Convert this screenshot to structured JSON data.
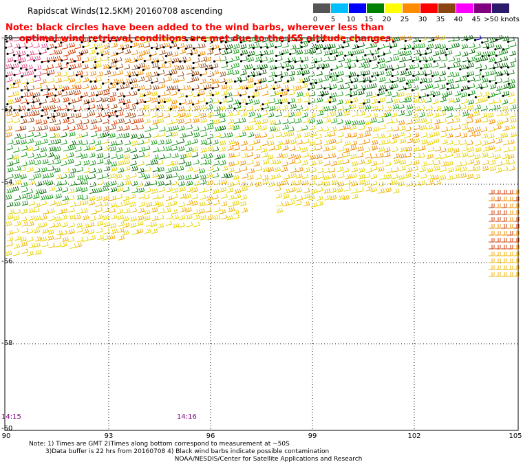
{
  "title": "Rapidscat Winds(12.5KM) 20160708 ascending",
  "note": {
    "line1": "Note: black circles have been added to the wind barbs, wherever less than",
    "line2": "optimal wind retrieval conditions are met due to the ISS altitude changes."
  },
  "colorbar": {
    "segments": [
      {
        "label": "0",
        "color": "#555555"
      },
      {
        "label": "5",
        "color": "#00bfff"
      },
      {
        "label": "10",
        "color": "#0000ff"
      },
      {
        "label": "15",
        "color": "#008000"
      },
      {
        "label": "20",
        "color": "#ffff00"
      },
      {
        "label": "25",
        "color": "#ff8c00"
      },
      {
        "label": "30",
        "color": "#ff0000"
      },
      {
        "label": "35",
        "color": "#8b4513"
      },
      {
        "label": "40",
        "color": "#ff00ff"
      },
      {
        "label": "45",
        "color": "#800080"
      },
      {
        "label": ">50 knots",
        "color": "#2e1a6b"
      }
    ]
  },
  "map": {
    "latitude_labels": [
      "-50",
      "-52",
      "-54",
      "-56",
      "-58",
      "-60"
    ],
    "longitude_labels": [
      "90",
      "93",
      "96",
      "99",
      "102",
      "105"
    ],
    "times": [
      "14:15",
      "14:16"
    ]
  },
  "footer": {
    "line1": "Note: 1) Times are GMT 2)Times along bottom correspond to measurement at ~50S",
    "line2": "3)Data buffer is 22 hrs from 20160708 4) Black wind barbs indicate possible contamination",
    "line3": "NOAA/NESDIS/Center for Satellite Applications and Research"
  }
}
